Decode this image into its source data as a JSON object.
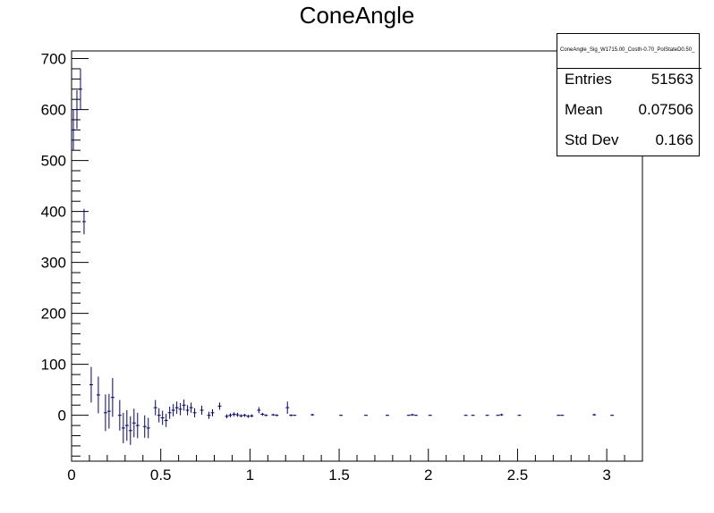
{
  "chart_data": {
    "type": "histogram",
    "title": "ConeAngle",
    "xlabel": "",
    "ylabel": "",
    "xlim": [
      0,
      3.2
    ],
    "ylim": [
      -90,
      715
    ],
    "x_ticks": [
      "0",
      "0.5",
      "1",
      "1.5",
      "2",
      "2.5",
      "3"
    ],
    "y_ticks": [
      "0",
      "100",
      "200",
      "300",
      "400",
      "500",
      "600",
      "700"
    ],
    "line_color": "#000080",
    "grid": false,
    "bin_width": 0.02,
    "points": [
      {
        "x": 0.01,
        "y": 560,
        "err": 40
      },
      {
        "x": 0.03,
        "y": 600,
        "err": 38
      },
      {
        "x": 0.05,
        "y": 640,
        "err": 40
      },
      {
        "x": 0.07,
        "y": 380,
        "err": 25
      },
      {
        "x": 0.11,
        "y": 60,
        "err": 35
      },
      {
        "x": 0.15,
        "y": 40,
        "err": 36
      },
      {
        "x": 0.19,
        "y": 5,
        "err": 36
      },
      {
        "x": 0.21,
        "y": 8,
        "err": 34
      },
      {
        "x": 0.23,
        "y": 35,
        "err": 38
      },
      {
        "x": 0.27,
        "y": 0,
        "err": 30
      },
      {
        "x": 0.29,
        "y": -25,
        "err": 30
      },
      {
        "x": 0.31,
        "y": -20,
        "err": 30
      },
      {
        "x": 0.33,
        "y": -30,
        "err": 28
      },
      {
        "x": 0.35,
        "y": -15,
        "err": 28
      },
      {
        "x": 0.37,
        "y": -20,
        "err": 25
      },
      {
        "x": 0.41,
        "y": -22,
        "err": 22
      },
      {
        "x": 0.43,
        "y": -25,
        "err": 20
      },
      {
        "x": 0.47,
        "y": 15,
        "err": 15
      },
      {
        "x": 0.49,
        "y": 0,
        "err": 14
      },
      {
        "x": 0.51,
        "y": -5,
        "err": 14
      },
      {
        "x": 0.53,
        "y": -10,
        "err": 13
      },
      {
        "x": 0.55,
        "y": 5,
        "err": 12
      },
      {
        "x": 0.57,
        "y": 10,
        "err": 12
      },
      {
        "x": 0.59,
        "y": 15,
        "err": 12
      },
      {
        "x": 0.61,
        "y": 12,
        "err": 12
      },
      {
        "x": 0.63,
        "y": 20,
        "err": 11
      },
      {
        "x": 0.65,
        "y": 10,
        "err": 10
      },
      {
        "x": 0.67,
        "y": 15,
        "err": 10
      },
      {
        "x": 0.69,
        "y": 5,
        "err": 9
      },
      {
        "x": 0.73,
        "y": 10,
        "err": 9
      },
      {
        "x": 0.77,
        "y": 0,
        "err": 7
      },
      {
        "x": 0.79,
        "y": 5,
        "err": 7
      },
      {
        "x": 0.83,
        "y": 18,
        "err": 7
      },
      {
        "x": 0.87,
        "y": -2,
        "err": 4
      },
      {
        "x": 0.89,
        "y": 0,
        "err": 4
      },
      {
        "x": 0.91,
        "y": 2,
        "err": 4
      },
      {
        "x": 0.93,
        "y": 1,
        "err": 4
      },
      {
        "x": 0.95,
        "y": -1,
        "err": 3
      },
      {
        "x": 0.97,
        "y": 0,
        "err": 3
      },
      {
        "x": 0.99,
        "y": -2,
        "err": 3
      },
      {
        "x": 1.01,
        "y": -1,
        "err": 3
      },
      {
        "x": 1.05,
        "y": 10,
        "err": 6
      },
      {
        "x": 1.07,
        "y": 2,
        "err": 3
      },
      {
        "x": 1.09,
        "y": 0,
        "err": 2
      },
      {
        "x": 1.13,
        "y": 1,
        "err": 2
      },
      {
        "x": 1.15,
        "y": 0,
        "err": 2
      },
      {
        "x": 1.21,
        "y": 15,
        "err": 12
      },
      {
        "x": 1.23,
        "y": 0,
        "err": 2
      },
      {
        "x": 1.25,
        "y": 0,
        "err": 1
      },
      {
        "x": 1.35,
        "y": 1,
        "err": 2
      },
      {
        "x": 1.51,
        "y": 0,
        "err": 1
      },
      {
        "x": 1.65,
        "y": 0,
        "err": 1
      },
      {
        "x": 1.77,
        "y": 0,
        "err": 1
      },
      {
        "x": 1.89,
        "y": 0,
        "err": 1
      },
      {
        "x": 1.91,
        "y": 1,
        "err": 2
      },
      {
        "x": 1.93,
        "y": 0,
        "err": 1
      },
      {
        "x": 2.01,
        "y": 0,
        "err": 1
      },
      {
        "x": 2.21,
        "y": 0,
        "err": 1
      },
      {
        "x": 2.25,
        "y": 0,
        "err": 1
      },
      {
        "x": 2.33,
        "y": 0,
        "err": 1
      },
      {
        "x": 2.39,
        "y": 0,
        "err": 1
      },
      {
        "x": 2.41,
        "y": 1,
        "err": 2
      },
      {
        "x": 2.51,
        "y": 0,
        "err": 1
      },
      {
        "x": 2.73,
        "y": 0,
        "err": 1
      },
      {
        "x": 2.75,
        "y": 0,
        "err": 1
      },
      {
        "x": 2.93,
        "y": 1,
        "err": 2
      },
      {
        "x": 3.03,
        "y": 0,
        "err": 1
      }
    ]
  },
  "stats": {
    "name": "ConeAngle_Sig_W1715.00_Costh-0.70_PolStateD0.50_",
    "rows": [
      {
        "label": "Entries",
        "value": "51563"
      },
      {
        "label": "Mean",
        "value": "0.07506"
      },
      {
        "label": "Std Dev",
        "value": "0.166"
      }
    ]
  }
}
